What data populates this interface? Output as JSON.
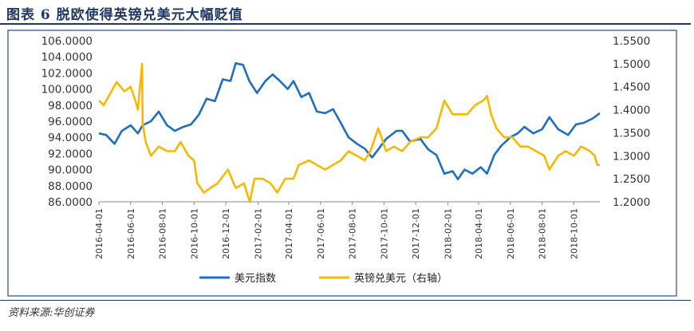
{
  "header": {
    "title": "图表 6   脱欧使得英镑兑美元大幅贬值"
  },
  "footer": {
    "source": "资料来源:华创证券"
  },
  "colors": {
    "dxy": "#1f6fbf",
    "gbpusd": "#f6b800",
    "title": "#1f3864",
    "frame": "#4a6fa5"
  },
  "chart_data": {
    "type": "line",
    "grid": false,
    "legend_position": "bottom",
    "y_left": {
      "range": [
        86,
        106
      ],
      "ticks": [
        "86.0000",
        "88.0000",
        "90.0000",
        "92.0000",
        "94.0000",
        "96.0000",
        "98.0000",
        "100.0000",
        "102.0000",
        "104.0000",
        "106.0000"
      ]
    },
    "y_right": {
      "range": [
        1.2,
        1.55
      ],
      "ticks": [
        "1.2000",
        "1.2500",
        "1.3000",
        "1.3500",
        "1.4000",
        "1.4500",
        "1.5000",
        "1.5500"
      ]
    },
    "x_ticks": [
      "2016-04-01",
      "2016-06-01",
      "2016-08-01",
      "2016-10-01",
      "2016-12-01",
      "2017-02-01",
      "2017-04-01",
      "2017-06-01",
      "2017-08-01",
      "2017-10-01",
      "2017-12-01",
      "2018-02-01",
      "2018-04-01",
      "2018-06-01",
      "2018-08-01",
      "2018-10-01"
    ],
    "x_range": [
      "2016-04-01",
      "2018-11-20"
    ],
    "series": [
      {
        "name": "美元指数",
        "axis": "left",
        "points": [
          [
            "2016-04-01",
            94.5
          ],
          [
            "2016-04-15",
            94.3
          ],
          [
            "2016-05-01",
            93.2
          ],
          [
            "2016-05-15",
            94.8
          ],
          [
            "2016-06-01",
            95.5
          ],
          [
            "2016-06-15",
            94.5
          ],
          [
            "2016-06-24",
            95.5
          ],
          [
            "2016-07-10",
            96.0
          ],
          [
            "2016-07-25",
            97.2
          ],
          [
            "2016-08-10",
            95.5
          ],
          [
            "2016-08-25",
            94.8
          ],
          [
            "2016-09-10",
            95.3
          ],
          [
            "2016-09-25",
            95.6
          ],
          [
            "2016-10-10",
            96.8
          ],
          [
            "2016-10-25",
            98.8
          ],
          [
            "2016-11-10",
            98.5
          ],
          [
            "2016-11-25",
            101.2
          ],
          [
            "2016-12-10",
            101.0
          ],
          [
            "2016-12-20",
            103.2
          ],
          [
            "2017-01-03",
            103.0
          ],
          [
            "2017-01-15",
            101.0
          ],
          [
            "2017-01-30",
            99.5
          ],
          [
            "2017-02-15",
            101.0
          ],
          [
            "2017-03-01",
            101.8
          ],
          [
            "2017-03-15",
            101.0
          ],
          [
            "2017-03-30",
            100.0
          ],
          [
            "2017-04-10",
            101.0
          ],
          [
            "2017-04-25",
            99.0
          ],
          [
            "2017-05-10",
            99.5
          ],
          [
            "2017-05-25",
            97.2
          ],
          [
            "2017-06-10",
            97.0
          ],
          [
            "2017-06-25",
            97.5
          ],
          [
            "2017-07-10",
            95.8
          ],
          [
            "2017-07-25",
            94.0
          ],
          [
            "2017-08-10",
            93.2
          ],
          [
            "2017-08-25",
            92.6
          ],
          [
            "2017-09-08",
            91.5
          ],
          [
            "2017-09-20",
            92.5
          ],
          [
            "2017-10-05",
            93.8
          ],
          [
            "2017-10-25",
            94.8
          ],
          [
            "2017-11-05",
            94.8
          ],
          [
            "2017-11-20",
            93.5
          ],
          [
            "2017-12-10",
            93.8
          ],
          [
            "2017-12-25",
            92.5
          ],
          [
            "2018-01-10",
            91.8
          ],
          [
            "2018-01-25",
            89.5
          ],
          [
            "2018-02-10",
            89.8
          ],
          [
            "2018-02-20",
            88.8
          ],
          [
            "2018-03-05",
            90.0
          ],
          [
            "2018-03-20",
            89.5
          ],
          [
            "2018-04-05",
            90.3
          ],
          [
            "2018-04-17",
            89.5
          ],
          [
            "2018-05-01",
            91.8
          ],
          [
            "2018-05-15",
            93.0
          ],
          [
            "2018-06-01",
            94.0
          ],
          [
            "2018-06-15",
            94.5
          ],
          [
            "2018-06-28",
            95.3
          ],
          [
            "2018-07-15",
            94.5
          ],
          [
            "2018-08-01",
            95.0
          ],
          [
            "2018-08-15",
            96.5
          ],
          [
            "2018-09-01",
            95.0
          ],
          [
            "2018-09-20",
            94.3
          ],
          [
            "2018-10-05",
            95.6
          ],
          [
            "2018-10-20",
            95.8
          ],
          [
            "2018-11-05",
            96.3
          ],
          [
            "2018-11-20",
            97.0
          ]
        ]
      },
      {
        "name": "英镑兑美元（右轴）",
        "axis": "right",
        "points": [
          [
            "2016-04-01",
            1.42
          ],
          [
            "2016-04-10",
            1.41
          ],
          [
            "2016-04-25",
            1.44
          ],
          [
            "2016-05-05",
            1.46
          ],
          [
            "2016-05-20",
            1.44
          ],
          [
            "2016-06-01",
            1.45
          ],
          [
            "2016-06-10",
            1.42
          ],
          [
            "2016-06-15",
            1.4
          ],
          [
            "2016-06-23",
            1.5
          ],
          [
            "2016-06-24",
            1.37
          ],
          [
            "2016-06-30",
            1.33
          ],
          [
            "2016-07-10",
            1.3
          ],
          [
            "2016-07-25",
            1.32
          ],
          [
            "2016-08-10",
            1.31
          ],
          [
            "2016-08-25",
            1.31
          ],
          [
            "2016-09-05",
            1.33
          ],
          [
            "2016-09-20",
            1.3
          ],
          [
            "2016-10-01",
            1.29
          ],
          [
            "2016-10-07",
            1.24
          ],
          [
            "2016-10-20",
            1.22
          ],
          [
            "2016-11-01",
            1.23
          ],
          [
            "2016-11-15",
            1.24
          ],
          [
            "2016-12-05",
            1.27
          ],
          [
            "2016-12-20",
            1.23
          ],
          [
            "2017-01-05",
            1.24
          ],
          [
            "2017-01-16",
            1.2
          ],
          [
            "2017-01-25",
            1.25
          ],
          [
            "2017-02-10",
            1.25
          ],
          [
            "2017-02-25",
            1.24
          ],
          [
            "2017-03-10",
            1.22
          ],
          [
            "2017-03-25",
            1.25
          ],
          [
            "2017-04-10",
            1.25
          ],
          [
            "2017-04-20",
            1.28
          ],
          [
            "2017-05-10",
            1.29
          ],
          [
            "2017-05-25",
            1.28
          ],
          [
            "2017-06-10",
            1.27
          ],
          [
            "2017-06-25",
            1.28
          ],
          [
            "2017-07-10",
            1.29
          ],
          [
            "2017-07-25",
            1.31
          ],
          [
            "2017-08-10",
            1.3
          ],
          [
            "2017-08-25",
            1.29
          ],
          [
            "2017-09-05",
            1.31
          ],
          [
            "2017-09-20",
            1.36
          ],
          [
            "2017-10-05",
            1.31
          ],
          [
            "2017-10-20",
            1.32
          ],
          [
            "2017-11-05",
            1.31
          ],
          [
            "2017-11-20",
            1.33
          ],
          [
            "2017-12-10",
            1.34
          ],
          [
            "2017-12-25",
            1.34
          ],
          [
            "2018-01-10",
            1.36
          ],
          [
            "2018-01-25",
            1.42
          ],
          [
            "2018-02-10",
            1.39
          ],
          [
            "2018-02-25",
            1.39
          ],
          [
            "2018-03-10",
            1.39
          ],
          [
            "2018-03-25",
            1.41
          ],
          [
            "2018-04-10",
            1.42
          ],
          [
            "2018-04-17",
            1.43
          ],
          [
            "2018-04-25",
            1.39
          ],
          [
            "2018-05-05",
            1.36
          ],
          [
            "2018-05-20",
            1.34
          ],
          [
            "2018-06-05",
            1.34
          ],
          [
            "2018-06-20",
            1.32
          ],
          [
            "2018-07-05",
            1.32
          ],
          [
            "2018-07-20",
            1.31
          ],
          [
            "2018-08-05",
            1.3
          ],
          [
            "2018-08-15",
            1.27
          ],
          [
            "2018-09-01",
            1.3
          ],
          [
            "2018-09-15",
            1.31
          ],
          [
            "2018-10-01",
            1.3
          ],
          [
            "2018-10-15",
            1.32
          ],
          [
            "2018-11-01",
            1.31
          ],
          [
            "2018-11-10",
            1.3
          ],
          [
            "2018-11-15",
            1.28
          ],
          [
            "2018-11-20",
            1.28
          ]
        ]
      }
    ]
  }
}
